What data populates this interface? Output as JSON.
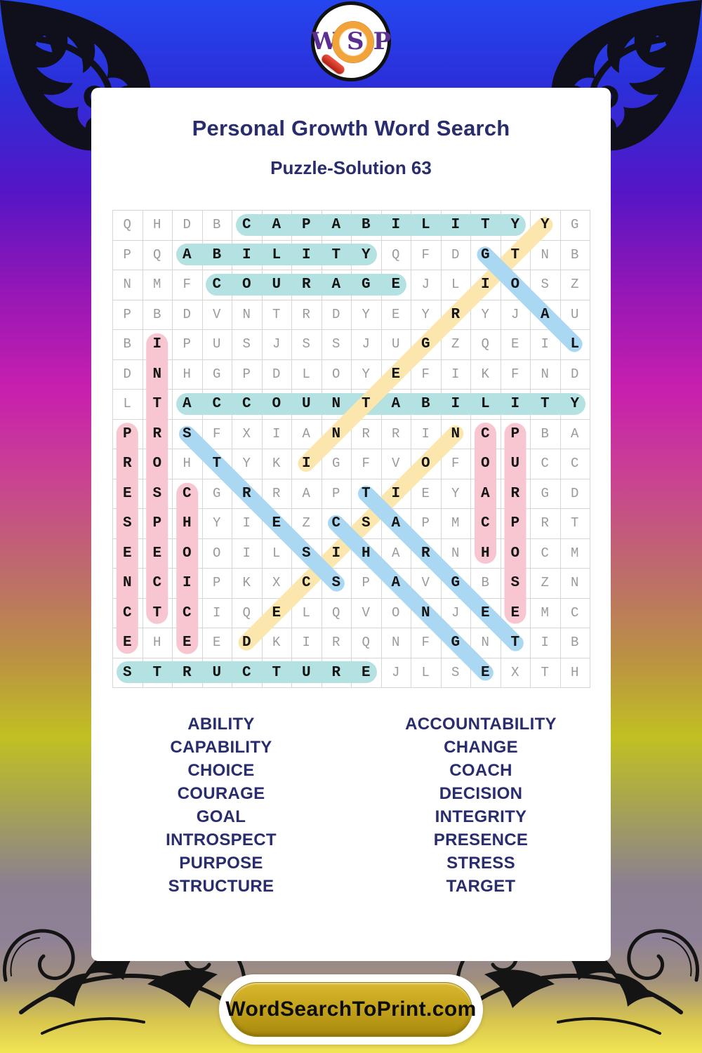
{
  "logo": {
    "w": "W",
    "s": "S",
    "p": "P"
  },
  "header": {
    "title": "Personal Growth Word Search",
    "subtitle": "Puzzle-Solution 63"
  },
  "puzzle": {
    "size": 16,
    "rows": [
      "QHDBCAPABILITYYG",
      "PQABILITYQFDGTNB",
      "NMFCOURAGEJLIOSZ",
      "PBDVNTRDYEYRYJAU",
      "BIPUSJSSJUGZQEIL",
      "DNHGPDLOYEFIKFND",
      "LTACCOUNTABILITY",
      "PRSFXIANRRINCPBA",
      "ROHTYKIGFVOFOUCC",
      "ESCGRRAPTIEYARGD",
      "SPHYIEZCSAPMCPRT",
      "EEOOILSIHARNHOCM",
      "NCIPKXCSPAVGBSZN",
      "CTCIQELQVONJEEMC",
      "EHEEDKIRQNFGNTIB",
      "STRUCTUREJLSEXTH"
    ],
    "solutions": [
      {
        "word": "CAPABILITY",
        "color": "teal",
        "start": [
          1,
          5
        ],
        "end": [
          1,
          14
        ]
      },
      {
        "word": "ABILITY",
        "color": "teal",
        "start": [
          2,
          3
        ],
        "end": [
          2,
          9
        ]
      },
      {
        "word": "COURAGE",
        "color": "teal",
        "start": [
          3,
          4
        ],
        "end": [
          3,
          10
        ]
      },
      {
        "word": "ACCOUNTABILITY",
        "color": "teal",
        "start": [
          7,
          3
        ],
        "end": [
          7,
          16
        ]
      },
      {
        "word": "STRUCTURE",
        "color": "teal",
        "start": [
          16,
          1
        ],
        "end": [
          16,
          9
        ]
      },
      {
        "word": "INTEGRITY",
        "color": "yellow",
        "start": [
          9,
          7
        ],
        "end": [
          1,
          15
        ]
      },
      {
        "word": "DECISION",
        "color": "yellow",
        "start": [
          15,
          5
        ],
        "end": [
          8,
          12
        ]
      },
      {
        "word": "GOAL",
        "color": "blue",
        "start": [
          2,
          13
        ],
        "end": [
          5,
          16
        ]
      },
      {
        "word": "STRESS",
        "color": "blue",
        "start": [
          8,
          3
        ],
        "end": [
          13,
          8
        ]
      },
      {
        "word": "TARGET",
        "color": "blue",
        "start": [
          10,
          9
        ],
        "end": [
          15,
          14
        ]
      },
      {
        "word": "CHANGE",
        "color": "blue",
        "start": [
          11,
          8
        ],
        "end": [
          16,
          13
        ]
      },
      {
        "word": "PRESENCE",
        "color": "pink",
        "start": [
          8,
          1
        ],
        "end": [
          15,
          1
        ]
      },
      {
        "word": "INTROSPECT",
        "color": "pink",
        "start": [
          5,
          2
        ],
        "end": [
          14,
          2
        ]
      },
      {
        "word": "CHOICE",
        "color": "pink",
        "start": [
          10,
          3
        ],
        "end": [
          15,
          3
        ]
      },
      {
        "word": "COACH",
        "color": "pink",
        "start": [
          8,
          13
        ],
        "end": [
          12,
          13
        ]
      },
      {
        "word": "PURPOSE",
        "color": "pink",
        "start": [
          8,
          14
        ],
        "end": [
          14,
          14
        ]
      }
    ]
  },
  "word_list": {
    "left": [
      "ABILITY",
      "CAPABILITY",
      "CHOICE",
      "COURAGE",
      "GOAL",
      "INTROSPECT",
      "PURPOSE",
      "STRUCTURE"
    ],
    "right": [
      "ACCOUNTABILITY",
      "CHANGE",
      "COACH",
      "DECISION",
      "INTEGRITY",
      "PRESENCE",
      "STRESS",
      "TARGET"
    ]
  },
  "footer": {
    "site": "WordSearchToPrint.com"
  },
  "colors": {
    "accent_navy": "#292d6d",
    "highlight_teal": "#b4e1e1",
    "highlight_pink": "#f8c6d1",
    "highlight_yellow": "#fbe6ad",
    "highlight_blue": "#aad7f2",
    "grid_letter_gray": "#9b9b9b",
    "grid_letter_bold": "#141414",
    "button_gold": "#c5a41d",
    "logo_purple": "#5b2e91",
    "magnifier_orange": "#f2a43b",
    "magnifier_red": "#c32a1a"
  }
}
